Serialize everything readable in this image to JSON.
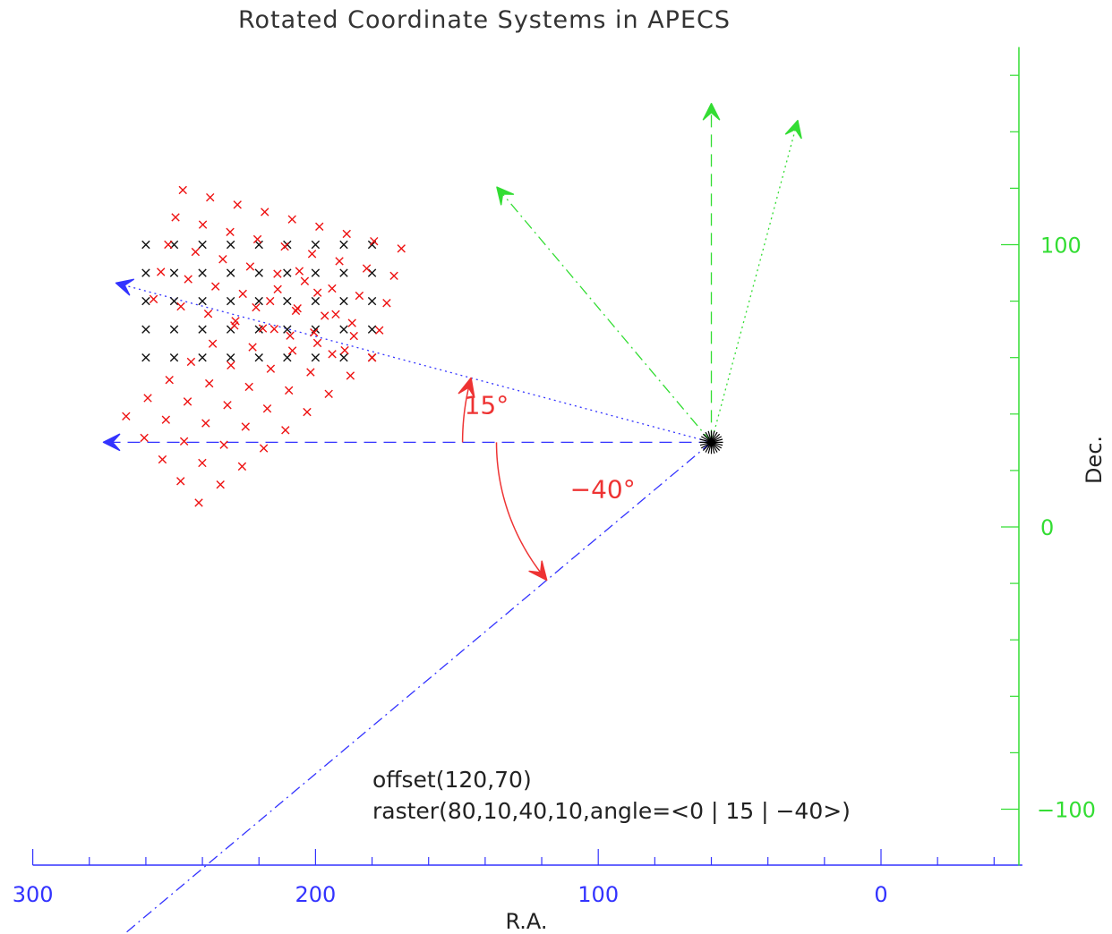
{
  "chart_data": {
    "type": "scatter",
    "title": "Rotated Coordinate Systems in APECS",
    "xlabel": "R.A.",
    "ylabel": "Dec.",
    "xlim": [
      300,
      -50
    ],
    "ylim": [
      -120,
      170
    ],
    "x_ticks": [
      300,
      200,
      100,
      0
    ],
    "x_tick_labels": [
      "300",
      "200",
      "100",
      "0"
    ],
    "y_ticks": [
      100,
      0,
      -100
    ],
    "y_tick_labels": [
      "100",
      "0",
      "−100"
    ],
    "colors": {
      "x_axis": "#3333ff",
      "y_axis": "#33dd33",
      "rotated_raster": "#ee1111",
      "unrotated_raster": "#111111",
      "angle_arrow": "#ee3333"
    },
    "center": {
      "x": 60,
      "y": 30
    },
    "raster": {
      "length": 80,
      "step": 10,
      "width": 40,
      "row_step": 10,
      "offset": [
        120,
        70
      ]
    },
    "series": [
      {
        "angle": 0,
        "color": "#111111",
        "marker": "x"
      },
      {
        "angle": 15,
        "color": "#ee1111",
        "marker": "x"
      },
      {
        "angle": -40,
        "color": "#ee1111",
        "marker": "x"
      }
    ],
    "axis_arrows": [
      {
        "axis": "ra",
        "angle": 0,
        "style": "dashed",
        "color": "#3333ff",
        "length": 215
      },
      {
        "axis": "ra",
        "angle": 15,
        "style": "dotted",
        "color": "#3333ff",
        "length": 218
      },
      {
        "axis": "ra",
        "angle": -40,
        "style": "dashdot",
        "color": "#3333ff",
        "length": 283
      },
      {
        "axis": "dec",
        "angle": 0,
        "style": "dashed",
        "color": "#33dd33",
        "length": 120
      },
      {
        "axis": "dec",
        "angle": 15,
        "style": "dotted",
        "color": "#33dd33",
        "length": 118
      },
      {
        "axis": "dec",
        "angle": -40,
        "style": "dashdot",
        "color": "#33dd33",
        "length": 118
      }
    ],
    "angle_arcs": [
      {
        "angle": 15,
        "label": "15°",
        "radius": 88
      },
      {
        "angle": -40,
        "label": "−40°",
        "radius": 76
      }
    ],
    "annotations": [
      "offset(120,70)",
      "raster(80,10,40,10,angle=<0 | 15 | −40>)"
    ]
  }
}
